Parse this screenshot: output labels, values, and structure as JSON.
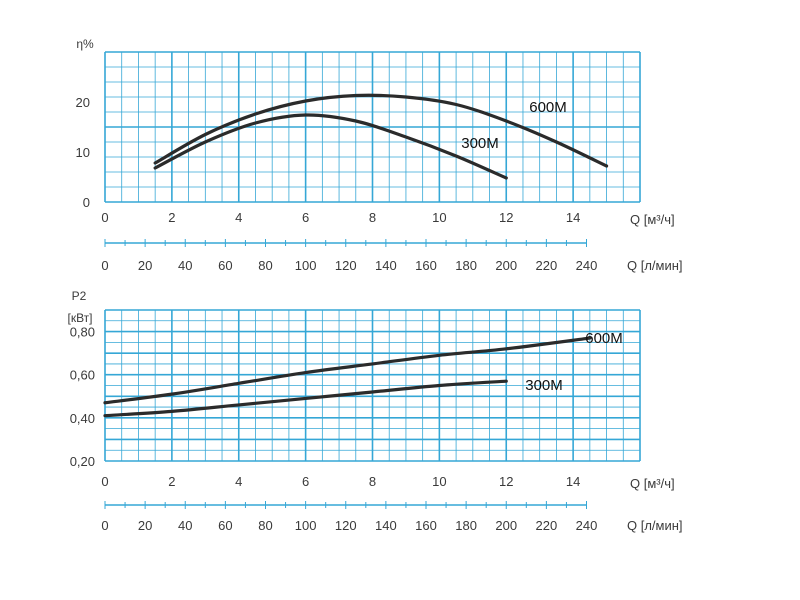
{
  "colors": {
    "grid": "#35a7d6",
    "curve": "#2b2b2b",
    "text": "#3a3a3a",
    "background": "#ffffff"
  },
  "chart_data": [
    {
      "type": "line",
      "ylabel": "η%",
      "xlabel": "Q [м³/ч]",
      "xlabel_secondary": "Q [л/мин]",
      "xlim": [
        0,
        16
      ],
      "ylim": [
        0,
        30
      ],
      "x_ticks": [
        "0",
        "2",
        "4",
        "6",
        "8",
        "10",
        "12",
        "14"
      ],
      "x_ticks_secondary": [
        "0",
        "20",
        "40",
        "60",
        "80",
        "100",
        "120",
        "140",
        "160",
        "180",
        "200",
        "220",
        "240"
      ],
      "y_ticks": [
        "0",
        "10",
        "20"
      ],
      "grid": true,
      "series": [
        {
          "name": "600M",
          "x": [
            1.5,
            3,
            4.5,
            6,
            7.5,
            9,
            10.5,
            12,
            13.5,
            15
          ],
          "y": [
            7.8,
            13.5,
            17.6,
            20.2,
            21.3,
            21.0,
            19.5,
            16.2,
            12.0,
            7.2
          ]
        },
        {
          "name": "300M",
          "x": [
            1.5,
            3,
            4.5,
            6,
            7.5,
            9,
            10.5,
            12
          ],
          "y": [
            6.8,
            12.0,
            15.8,
            17.4,
            16.2,
            13.0,
            9.2,
            4.8
          ]
        }
      ]
    },
    {
      "type": "line",
      "ylabel": "P2",
      "ylabel_unit": "[кВт]",
      "xlabel": "Q [м³/ч]",
      "xlabel_secondary": "Q [л/мин]",
      "xlim": [
        0,
        16
      ],
      "ylim": [
        0.2,
        0.9
      ],
      "x_ticks": [
        "0",
        "2",
        "4",
        "6",
        "8",
        "10",
        "12",
        "14"
      ],
      "x_ticks_secondary": [
        "0",
        "20",
        "40",
        "60",
        "80",
        "100",
        "120",
        "140",
        "160",
        "180",
        "200",
        "220",
        "240"
      ],
      "y_ticks": [
        "0,20",
        "0,40",
        "0,60",
        "0,80"
      ],
      "grid": true,
      "series": [
        {
          "name": "600M",
          "x": [
            0,
            2,
            4,
            6,
            8,
            10,
            12,
            14.5
          ],
          "y": [
            0.47,
            0.51,
            0.56,
            0.61,
            0.65,
            0.69,
            0.72,
            0.77
          ]
        },
        {
          "name": "300M",
          "x": [
            0,
            2,
            4,
            6,
            8,
            10,
            12
          ],
          "y": [
            0.41,
            0.43,
            0.46,
            0.49,
            0.52,
            0.55,
            0.57
          ]
        }
      ]
    }
  ]
}
